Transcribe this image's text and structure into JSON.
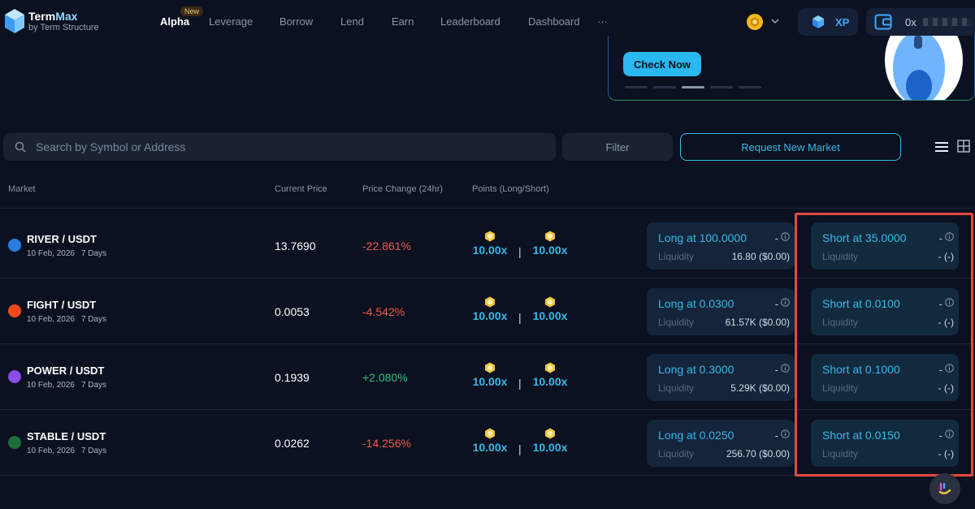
{
  "header": {
    "logo_name": "Term",
    "logo_name_accent": "Max",
    "logo_sub": "by Term Structure",
    "nav": [
      {
        "label": "Alpha",
        "active": true
      },
      {
        "label": "Leverage"
      },
      {
        "label": "Borrow"
      },
      {
        "label": "Lend"
      },
      {
        "label": "Earn"
      },
      {
        "label": "Leaderboard"
      },
      {
        "label": "Dashboard"
      },
      {
        "label": "···"
      }
    ],
    "new_badge": "New",
    "xp_label": "XP",
    "wallet_prefix": "0x",
    "icons": {
      "coin": "coin-icon",
      "xp": "cube-icon",
      "wallet": "wallet-icon",
      "chevron": "chevron-down-icon"
    }
  },
  "banner": {
    "cta": "Check Now",
    "slides": 5,
    "active_slide": 3
  },
  "toolbar": {
    "search_placeholder": "Search by Symbol or Address",
    "filter_label": "Filter",
    "request_label": "Request New Market"
  },
  "table": {
    "columns": {
      "market": "Market",
      "price": "Current Price",
      "change": "Price Change (24hr)",
      "points": "Points (Long/Short)"
    },
    "liquidity_label": "Liquidity",
    "rows": [
      {
        "symbol": "RIVER / USDT",
        "date": "10 Feb, 2026",
        "days": "7 Days",
        "price": "13.7690",
        "change": "-22.861%",
        "change_dir": "neg",
        "points_long": "10.00x",
        "points_short": "10.00x",
        "long_title": "Long at 100.0000",
        "long_dash": "-",
        "long_liq": "16.80 ($0.00)",
        "short_title": "Short at 35.0000",
        "short_dash": "-",
        "short_liq": "- (-)",
        "icon_color": "#2a7de1"
      },
      {
        "symbol": "FIGHT / USDT",
        "date": "10 Feb, 2026",
        "days": "7 Days",
        "price": "0.0053",
        "change": "-4.542%",
        "change_dir": "neg",
        "points_long": "10.00x",
        "points_short": "10.00x",
        "long_title": "Long at 0.0300",
        "long_dash": "-",
        "long_liq": "61.57K ($0.00)",
        "short_title": "Short at 0.0100",
        "short_dash": "-",
        "short_liq": "- (-)",
        "icon_color": "#f04a1c"
      },
      {
        "symbol": "POWER / USDT",
        "date": "10 Feb, 2026",
        "days": "7 Days",
        "price": "0.1939",
        "change": "+2.080%",
        "change_dir": "pos",
        "points_long": "10.00x",
        "points_short": "10.00x",
        "long_title": "Long at 0.3000",
        "long_dash": "-",
        "long_liq": "5.29K ($0.00)",
        "short_title": "Short at 0.1000",
        "short_dash": "-",
        "short_liq": "- (-)",
        "icon_color": "#8a4de8"
      },
      {
        "symbol": "STABLE / USDT",
        "date": "10 Feb, 2026",
        "days": "7 Days",
        "price": "0.0262",
        "change": "-14.256%",
        "change_dir": "neg",
        "points_long": "10.00x",
        "points_short": "10.00x",
        "long_title": "Long at 0.0250",
        "long_dash": "-",
        "long_liq": "256.70 ($0.00)",
        "short_title": "Short at 0.0150",
        "short_dash": "-",
        "short_liq": "- (-)",
        "icon_color": "#1f6b3c"
      }
    ]
  },
  "colors": {
    "accent": "#38b8e8",
    "negative": "#f0584c",
    "positive": "#2ec27e",
    "highlight": "#e6483d"
  }
}
